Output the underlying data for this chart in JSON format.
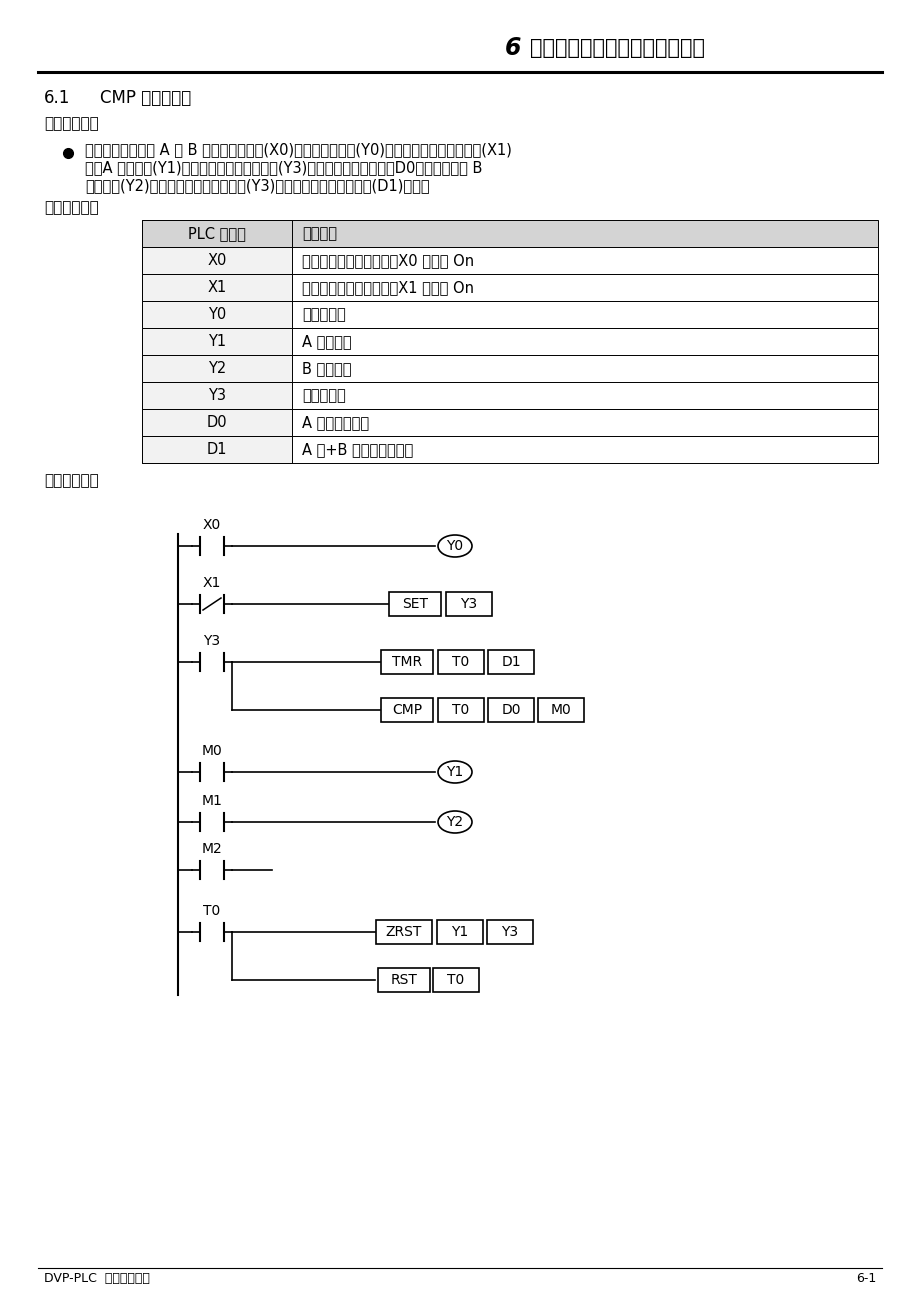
{
  "title": "6  应用指令传送比较控制设计范例",
  "section_num": "6.1",
  "section_text": "CMP 原料渗混机",
  "control_req_title": "【控制要求】",
  "element_title": "【元件说明】",
  "program_title": "【控制程序】",
  "line1": "有一原料渗混机有 A 及 B 料，当系统启动(X0)后，系统启动灯(Y0)亮，当按下加工启动开关(X1)",
  "line2": "后，A 料控制阀(Y1)开始送料，且搨拌器电机(Y3)开始转动，设置时间（D0）到达后换由 B",
  "line3": "料控制阀(Y2)开始送料，且搨拌器电机(Y3)持续转动，直到工作时间(D1)到达。",
  "table_header": [
    "PLC 软元件",
    "控制说明"
  ],
  "table_rows": [
    [
      "X0",
      "系统启动开关，按下时，X0 状态为 On"
    ],
    [
      "X1",
      "加工启动开关，按下时，X1 状态为 On"
    ],
    [
      "Y0",
      "系统启动灯"
    ],
    [
      "Y1",
      "A 料出口阀"
    ],
    [
      "Y2",
      "B 料出口阀"
    ],
    [
      "Y3",
      "搨拌器电机"
    ],
    [
      "D0",
      "A 料送料的时间"
    ],
    [
      "D1",
      "A 料+B 料送料的总时间"
    ]
  ],
  "footer_left": "DVP-PLC  应用技术手册",
  "footer_right": "6-1"
}
